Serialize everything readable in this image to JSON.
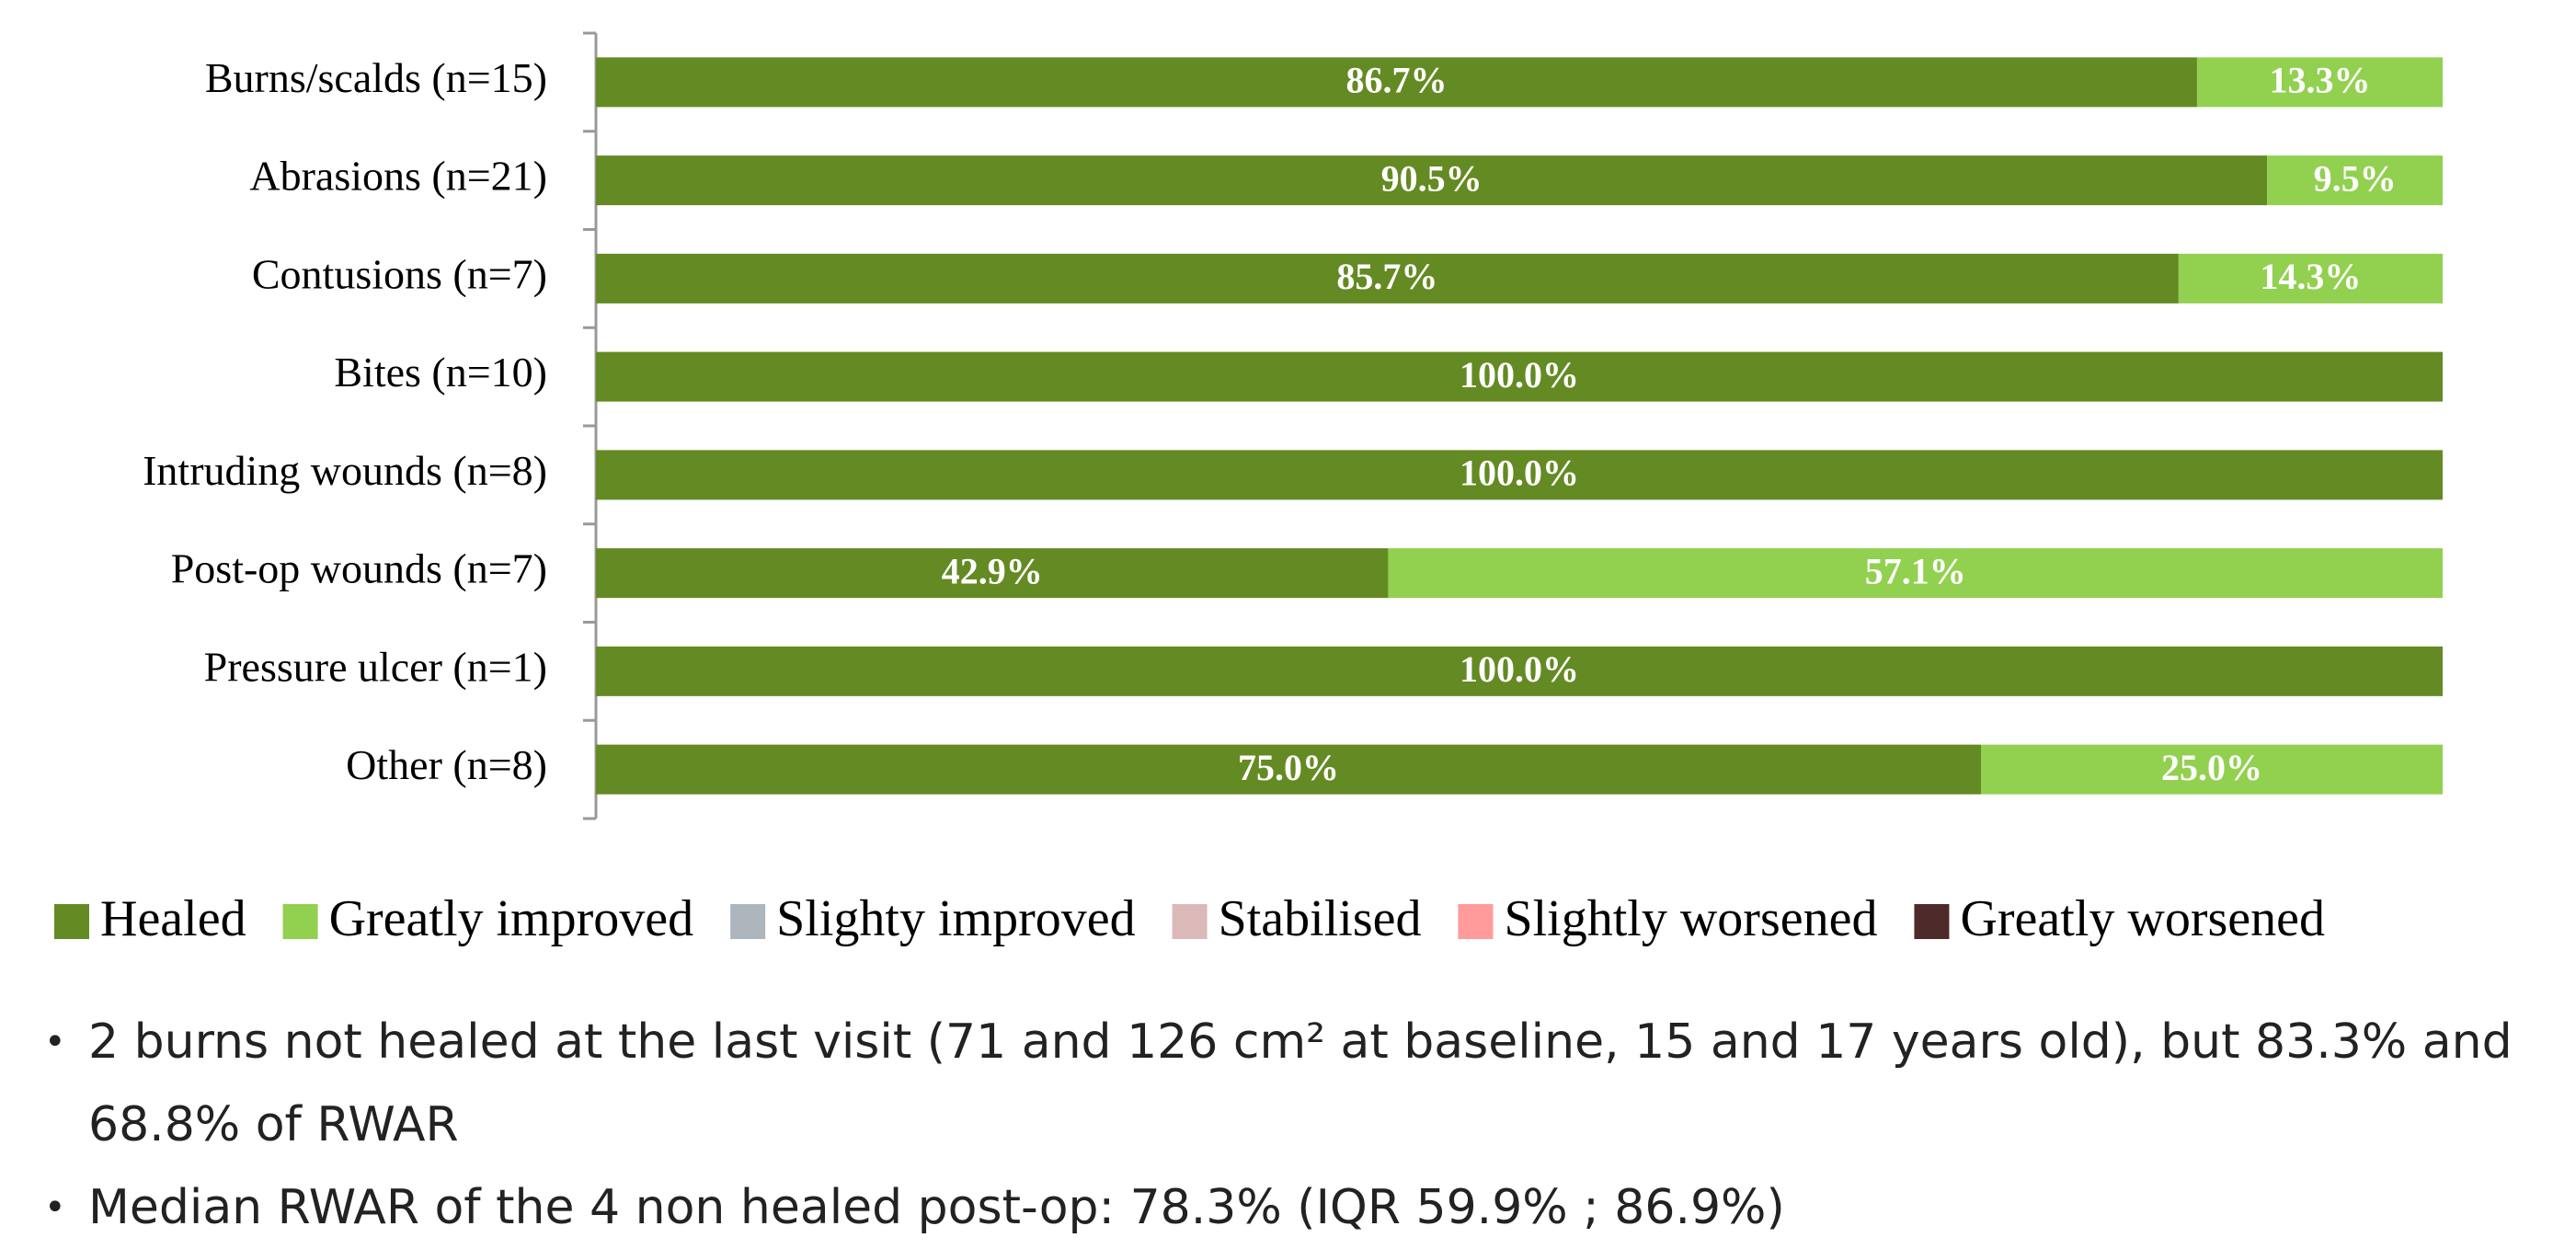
{
  "chart_data": {
    "type": "stacked-barh",
    "categories": [
      "Burns/scalds (n=15)",
      "Abrasions (n=21)",
      "Contusions (n=7)",
      "Bites (n=10)",
      "Intruding wounds (n=8)",
      "Post-op wounds (n=7)",
      "Pressure ulcer (n=1)",
      "Other (n=8)"
    ],
    "series": [
      {
        "name": "Healed",
        "color": "#648a23",
        "values": [
          86.7,
          90.5,
          85.7,
          100,
          100,
          42.9,
          100,
          75
        ],
        "value_labels": [
          "86.7%",
          "90.5%",
          "85.7%",
          "100.0%",
          "100.0%",
          "42.9%",
          "100.0%",
          "75.0%"
        ]
      },
      {
        "name": "Greatly improved",
        "color": "#92d050",
        "values": [
          13.3,
          9.5,
          14.3,
          0,
          0,
          57.1,
          0,
          25
        ],
        "value_labels": [
          "13.3%",
          "9.5%",
          "14.3%",
          null,
          null,
          "57.1%",
          null,
          "25.0%"
        ]
      },
      {
        "name": "Slighty improved",
        "color": "#adb5bd",
        "values": [
          0,
          0,
          0,
          0,
          0,
          0,
          0,
          0
        ]
      },
      {
        "name": "Stabilised",
        "color": "#dbb9b9",
        "values": [
          0,
          0,
          0,
          0,
          0,
          0,
          0,
          0
        ]
      },
      {
        "name": "Slightly worsened",
        "color": "#ff9b9b",
        "values": [
          0,
          0,
          0,
          0,
          0,
          0,
          0,
          0
        ]
      },
      {
        "name": "Greatly worsened",
        "color": "#4f2a2a",
        "values": [
          0,
          0,
          0,
          0,
          0,
          0,
          0,
          0
        ]
      }
    ],
    "xlim": [
      0,
      100
    ],
    "legend": "bottom"
  },
  "notes": [
    "2 burns not healed at the last visit (71 and 126 cm² at baseline, 15 and 17 years old), but 83.3% and 68.8% of RWAR",
    "Median RWAR of the 4 non healed post-op: 78.3% (IQR 59.9% ; 86.9%)"
  ]
}
